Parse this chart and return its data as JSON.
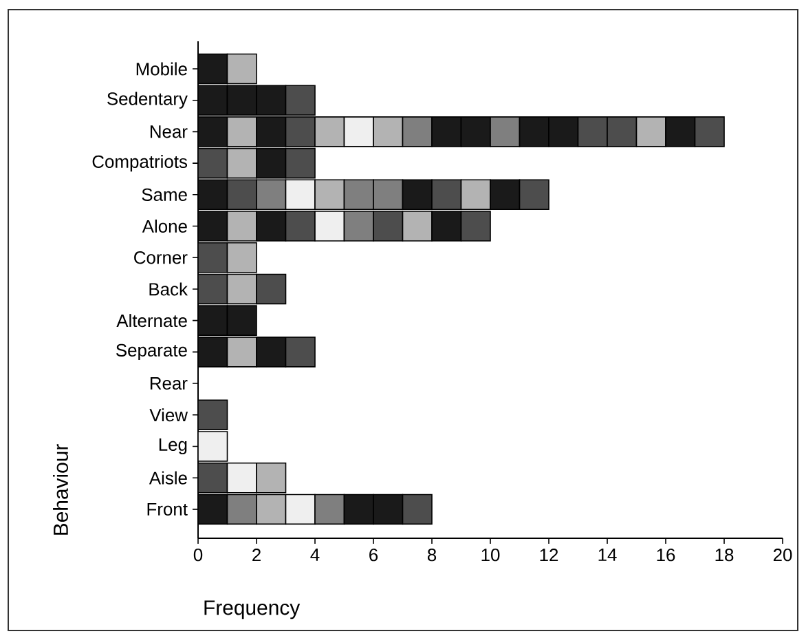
{
  "chart_data": {
    "type": "bar",
    "orientation": "horizontal",
    "stacked": true,
    "xlabel": "Frequency",
    "ylabel": "Behaviour",
    "categories": [
      "Mobile",
      "Sedentary",
      "Near",
      "Compatriots",
      "Same",
      "Alone",
      "Corner",
      "Back",
      "Alternate",
      "Separate",
      "Rear",
      "View",
      "Leg",
      "Aisle",
      "Front"
    ],
    "xlim": [
      0,
      20
    ],
    "xticks": [
      0,
      2,
      4,
      6,
      8,
      10,
      12,
      14,
      16,
      18,
      20
    ],
    "series": [
      {
        "values": [
          1,
          1,
          1,
          1,
          1,
          1,
          1,
          1,
          1,
          1,
          null,
          1,
          1,
          1,
          1
        ],
        "colors": [
          "#1a1a1a",
          "#1a1a1a",
          "#1a1a1a",
          "#4d4d4d",
          "#1a1a1a",
          "#1a1a1a",
          "#4d4d4d",
          "#4d4d4d",
          "#1a1a1a",
          "#1a1a1a",
          null,
          "#4d4d4d",
          "#efefef",
          "#4d4d4d",
          "#1a1a1a"
        ]
      },
      {
        "values": [
          1,
          1,
          1,
          1,
          1,
          1,
          1,
          1,
          1,
          1,
          null,
          null,
          null,
          1,
          1
        ],
        "colors": [
          "#b3b3b3",
          "#1a1a1a",
          "#b3b3b3",
          "#b3b3b3",
          "#4d4d4d",
          "#b3b3b3",
          "#b3b3b3",
          "#b3b3b3",
          "#1a1a1a",
          "#b3b3b3",
          null,
          null,
          null,
          "#efefef",
          "#7f7f7f"
        ]
      },
      {
        "values": [
          null,
          1,
          1,
          1,
          1,
          1,
          null,
          1,
          null,
          1,
          null,
          null,
          null,
          1,
          1
        ],
        "colors": [
          null,
          "#1a1a1a",
          "#1a1a1a",
          "#1a1a1a",
          "#7f7f7f",
          "#1a1a1a",
          null,
          "#4d4d4d",
          null,
          "#1a1a1a",
          null,
          null,
          null,
          "#b3b3b3",
          "#b3b3b3"
        ]
      },
      {
        "values": [
          null,
          1,
          1,
          1,
          1,
          1,
          null,
          null,
          null,
          1,
          null,
          null,
          null,
          null,
          1
        ],
        "colors": [
          null,
          "#4d4d4d",
          "#4d4d4d",
          "#4d4d4d",
          "#efefef",
          "#4d4d4d",
          null,
          null,
          null,
          "#4d4d4d",
          null,
          null,
          null,
          null,
          "#efefef"
        ]
      },
      {
        "values": [
          null,
          null,
          1,
          null,
          1,
          1,
          null,
          null,
          null,
          null,
          null,
          null,
          null,
          null,
          1
        ],
        "colors": [
          null,
          null,
          "#b3b3b3",
          null,
          "#b3b3b3",
          "#efefef",
          null,
          null,
          null,
          null,
          null,
          null,
          null,
          null,
          "#7f7f7f"
        ]
      },
      {
        "values": [
          null,
          null,
          1,
          null,
          1,
          1,
          null,
          null,
          null,
          null,
          null,
          null,
          null,
          null,
          1
        ],
        "colors": [
          null,
          null,
          "#efefef",
          null,
          "#7f7f7f",
          "#7f7f7f",
          null,
          null,
          null,
          null,
          null,
          null,
          null,
          null,
          "#1a1a1a"
        ]
      },
      {
        "values": [
          null,
          null,
          1,
          null,
          1,
          1,
          null,
          null,
          null,
          null,
          null,
          null,
          null,
          null,
          1
        ],
        "colors": [
          null,
          null,
          "#b3b3b3",
          null,
          "#7f7f7f",
          "#4d4d4d",
          null,
          null,
          null,
          null,
          null,
          null,
          null,
          null,
          "#1a1a1a"
        ]
      },
      {
        "values": [
          null,
          null,
          1,
          null,
          1,
          1,
          null,
          null,
          null,
          null,
          null,
          null,
          null,
          null,
          1
        ],
        "colors": [
          null,
          null,
          "#7f7f7f",
          null,
          "#1a1a1a",
          "#b3b3b3",
          null,
          null,
          null,
          null,
          null,
          null,
          null,
          null,
          "#4d4d4d"
        ]
      },
      {
        "values": [
          null,
          null,
          1,
          null,
          1,
          1,
          null,
          null,
          null,
          null,
          null,
          null,
          null,
          null,
          null
        ],
        "colors": [
          null,
          null,
          "#1a1a1a",
          null,
          "#4d4d4d",
          "#1a1a1a",
          null,
          null,
          null,
          null,
          null,
          null,
          null,
          null,
          null
        ]
      },
      {
        "values": [
          null,
          null,
          1,
          null,
          1,
          1,
          null,
          null,
          null,
          null,
          null,
          null,
          null,
          null,
          null
        ],
        "colors": [
          null,
          null,
          "#1a1a1a",
          null,
          "#b3b3b3",
          "#4d4d4d",
          null,
          null,
          null,
          null,
          null,
          null,
          null,
          null,
          null
        ]
      },
      {
        "values": [
          null,
          null,
          1,
          null,
          1,
          null,
          null,
          null,
          null,
          null,
          null,
          null,
          null,
          null,
          null
        ],
        "colors": [
          null,
          null,
          "#7f7f7f",
          null,
          "#1a1a1a",
          null,
          null,
          null,
          null,
          null,
          null,
          null,
          null,
          null,
          null
        ]
      },
      {
        "values": [
          null,
          null,
          1,
          null,
          1,
          null,
          null,
          null,
          null,
          null,
          null,
          null,
          null,
          null,
          null
        ],
        "colors": [
          null,
          null,
          "#1a1a1a",
          null,
          "#4d4d4d",
          null,
          null,
          null,
          null,
          null,
          null,
          null,
          null,
          null,
          null
        ]
      },
      {
        "values": [
          null,
          null,
          1,
          null,
          null,
          null,
          null,
          null,
          null,
          null,
          null,
          null,
          null,
          null,
          null
        ],
        "colors": [
          null,
          null,
          "#1a1a1a",
          null,
          null,
          null,
          null,
          null,
          null,
          null,
          null,
          null,
          null,
          null,
          null
        ]
      },
      {
        "values": [
          null,
          null,
          1,
          null,
          null,
          null,
          null,
          null,
          null,
          null,
          null,
          null,
          null,
          null,
          null
        ],
        "colors": [
          null,
          null,
          "#4d4d4d",
          null,
          null,
          null,
          null,
          null,
          null,
          null,
          null,
          null,
          null,
          null,
          null
        ]
      },
      {
        "values": [
          null,
          null,
          1,
          null,
          null,
          null,
          null,
          null,
          null,
          null,
          null,
          null,
          null,
          null,
          null
        ],
        "colors": [
          null,
          null,
          "#4d4d4d",
          null,
          null,
          null,
          null,
          null,
          null,
          null,
          null,
          null,
          null,
          null,
          null
        ]
      },
      {
        "values": [
          null,
          null,
          1,
          null,
          null,
          null,
          null,
          null,
          null,
          null,
          null,
          null,
          null,
          null,
          null
        ],
        "colors": [
          null,
          null,
          "#b3b3b3",
          null,
          null,
          null,
          null,
          null,
          null,
          null,
          null,
          null,
          null,
          null,
          null
        ]
      },
      {
        "values": [
          null,
          null,
          1,
          null,
          null,
          null,
          null,
          null,
          null,
          null,
          null,
          null,
          null,
          null,
          null
        ],
        "colors": [
          null,
          null,
          "#1a1a1a",
          null,
          null,
          null,
          null,
          null,
          null,
          null,
          null,
          null,
          null,
          null,
          null
        ]
      },
      {
        "values": [
          null,
          null,
          1,
          null,
          null,
          null,
          null,
          null,
          null,
          null,
          null,
          null,
          null,
          null,
          null
        ],
        "colors": [
          null,
          null,
          "#4d4d4d",
          null,
          null,
          null,
          null,
          null,
          null,
          null,
          null,
          null,
          null,
          null,
          null
        ]
      }
    ]
  }
}
